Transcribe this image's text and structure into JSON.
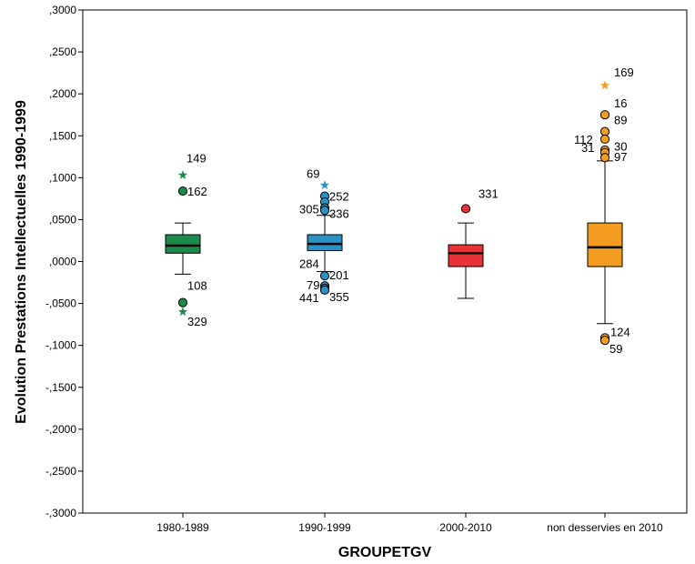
{
  "chart_data": {
    "type": "boxplot",
    "xlabel": "GROUPETGV",
    "ylabel": "Evolution Prestations Intellectuelles 1990-1999",
    "ylim": [
      -0.3,
      0.3
    ],
    "yticks": [
      0.3,
      0.25,
      0.2,
      0.15,
      0.1,
      0.05,
      0.0,
      -0.05,
      -0.1,
      -0.15,
      -0.2,
      -0.25,
      -0.3
    ],
    "ytick_labels": [
      ",3000",
      ",2500",
      ",2000",
      ",1500",
      ",1000",
      ",0500",
      ",0000",
      "-,0500",
      "-,1000",
      "-,1500",
      "-,2000",
      "-,2500",
      "-,3000"
    ],
    "grid": false,
    "categories": [
      "1980-1989",
      "1990-1999",
      "2000-2010",
      "non desservies en 2010"
    ],
    "boxes": [
      {
        "category": "1980-1989",
        "color": "#1b8a4a",
        "whisker_low": -0.015,
        "q1": 0.01,
        "median": 0.019,
        "q3": 0.032,
        "whisker_high": 0.046,
        "outliers": [
          {
            "value": 0.103,
            "kind": "extreme",
            "label": "149"
          },
          {
            "value": 0.084,
            "kind": "outlier",
            "label": "162"
          },
          {
            "value": -0.049,
            "kind": "outlier",
            "label": "108"
          },
          {
            "value": -0.06,
            "kind": "extreme",
            "label": "329"
          }
        ]
      },
      {
        "category": "1990-1999",
        "color": "#2a93c4",
        "whisker_low": -0.012,
        "q1": 0.013,
        "median": 0.021,
        "q3": 0.032,
        "whisker_high": 0.055,
        "outliers": [
          {
            "value": 0.091,
            "kind": "extreme",
            "label": "69"
          },
          {
            "value": 0.078,
            "kind": "outlier",
            "label": "252"
          },
          {
            "value": 0.071,
            "kind": "outlier",
            "label": ""
          },
          {
            "value": 0.064,
            "kind": "outlier",
            "label": "305"
          },
          {
            "value": 0.061,
            "kind": "outlier",
            "label": "336"
          },
          {
            "value": -0.017,
            "kind": "outlier",
            "label": "201"
          },
          {
            "value": -0.029,
            "kind": "outlier",
            "label": "79"
          },
          {
            "value": -0.032,
            "kind": "outlier",
            "label": ""
          },
          {
            "value": -0.034,
            "kind": "outlier",
            "label": "355"
          }
        ],
        "extra_labels": [
          {
            "value": -0.003,
            "label": "284"
          },
          {
            "value": -0.044,
            "label": "441"
          }
        ]
      },
      {
        "category": "2000-2010",
        "color": "#e83236",
        "whisker_low": -0.044,
        "q1": -0.006,
        "median": 0.01,
        "q3": 0.02,
        "whisker_high": 0.046,
        "outliers": [
          {
            "value": 0.063,
            "kind": "outlier",
            "label": "331"
          }
        ]
      },
      {
        "category": "non desservies en 2010",
        "color": "#f39c1f",
        "whisker_low": -0.074,
        "q1": -0.006,
        "median": 0.017,
        "q3": 0.046,
        "whisker_high": 0.12,
        "outliers": [
          {
            "value": 0.21,
            "kind": "extreme",
            "label": "169"
          },
          {
            "value": 0.175,
            "kind": "outlier",
            "label": "16"
          },
          {
            "value": 0.155,
            "kind": "outlier",
            "label": "89"
          },
          {
            "value": 0.146,
            "kind": "outlier",
            "label": "112"
          },
          {
            "value": 0.133,
            "kind": "outlier",
            "label": "31"
          },
          {
            "value": 0.13,
            "kind": "outlier",
            "label": "30"
          },
          {
            "value": 0.124,
            "kind": "outlier",
            "label": "97"
          },
          {
            "value": -0.091,
            "kind": "outlier",
            "label": "124"
          },
          {
            "value": -0.094,
            "kind": "outlier",
            "label": "59"
          }
        ]
      }
    ]
  }
}
